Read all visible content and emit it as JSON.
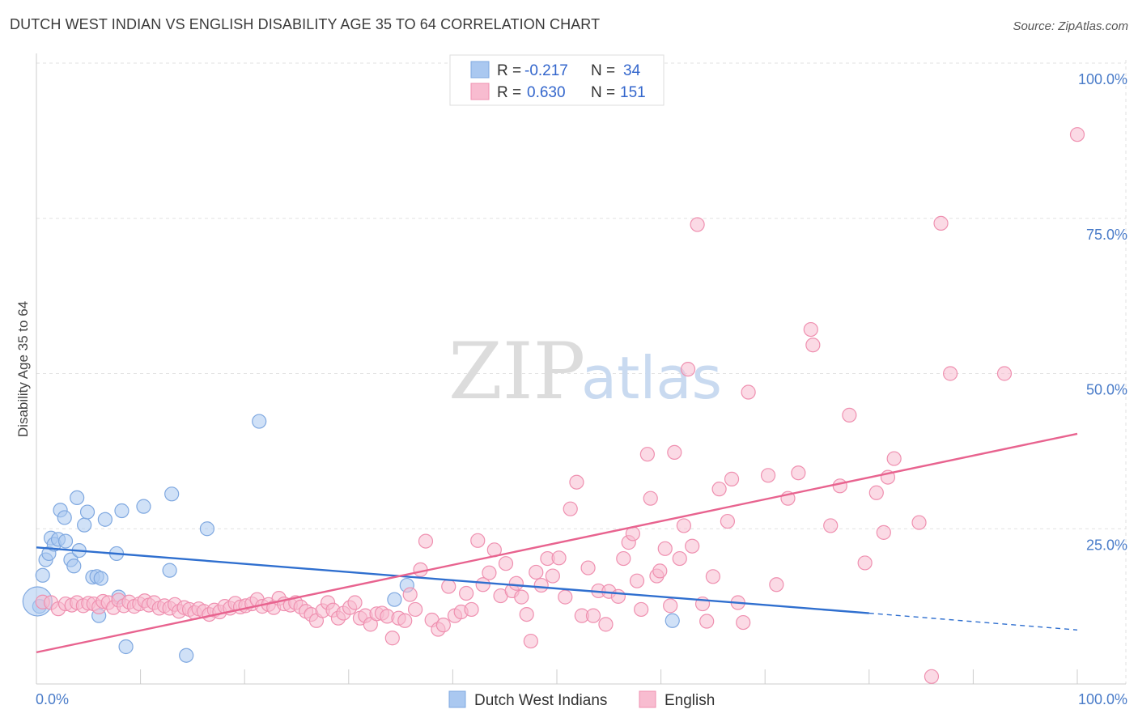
{
  "header": {
    "title": "DUTCH WEST INDIAN VS ENGLISH DISABILITY AGE 35 TO 64 CORRELATION CHART",
    "source": "Source: ZipAtlas.com"
  },
  "watermark": {
    "zip": "ZIP",
    "atlas": "atlas"
  },
  "legend": {
    "rows": [
      {
        "r_label": "R =",
        "r_value": "-0.217",
        "n_label": "N =",
        "n_value": "34",
        "color": "#aac8f0",
        "border": "#7fa8e0"
      },
      {
        "r_label": "R =",
        "r_value": "0.630",
        "n_label": "N =",
        "n_value": "151",
        "color": "#f8bcd0",
        "border": "#ef90b0"
      }
    ]
  },
  "bottom_legend": [
    {
      "label": "Dutch West Indians",
      "color": "#aac8f0",
      "border": "#7fa8e0"
    },
    {
      "label": "English",
      "color": "#f8bcd0",
      "border": "#ef90b0"
    }
  ],
  "chart_data": {
    "type": "scatter",
    "title": "DUTCH WEST INDIAN VS ENGLISH DISABILITY AGE 35 TO 64 CORRELATION CHART",
    "xlabel": "",
    "ylabel": "Disability Age 35 to 64",
    "xlim": [
      0,
      100
    ],
    "ylim": [
      0,
      100
    ],
    "x_tick_labels": [
      "0.0%",
      "100.0%"
    ],
    "y_ticks": [
      {
        "value": 25,
        "label": "25.0%"
      },
      {
        "value": 50,
        "label": "50.0%"
      },
      {
        "value": 75,
        "label": "75.0%"
      },
      {
        "value": 100,
        "label": "100.0%"
      }
    ],
    "grid": true,
    "legend_position": "top-center",
    "series": [
      {
        "name": "Dutch West Indians",
        "color": "#aac8f0",
        "stroke": "#7fa8e0",
        "trend_color": "#2f6fcf",
        "trend": {
          "x0": 0,
          "y0": 22.0,
          "x1": 80,
          "y1": 11.4,
          "x_dash_end": 100,
          "y_dash_end": 8.7
        },
        "points": [
          [
            0.3,
            12.5
          ],
          [
            0.6,
            17.5
          ],
          [
            0.9,
            20.0
          ],
          [
            1.2,
            21.0
          ],
          [
            1.4,
            23.5
          ],
          [
            1.7,
            22.5
          ],
          [
            2.1,
            23.3
          ],
          [
            2.3,
            28.0
          ],
          [
            2.7,
            26.8
          ],
          [
            2.8,
            23.0
          ],
          [
            3.3,
            20.0
          ],
          [
            3.6,
            19.0
          ],
          [
            3.9,
            30.0
          ],
          [
            4.1,
            21.5
          ],
          [
            4.6,
            25.6
          ],
          [
            4.9,
            27.7
          ],
          [
            5.4,
            17.2
          ],
          [
            5.8,
            17.3
          ],
          [
            6.2,
            17.0
          ],
          [
            6.0,
            11.0
          ],
          [
            6.6,
            26.5
          ],
          [
            7.7,
            21.0
          ],
          [
            7.9,
            14.0
          ],
          [
            8.2,
            27.9
          ],
          [
            8.6,
            6.0
          ],
          [
            10.3,
            28.6
          ],
          [
            12.8,
            18.3
          ],
          [
            13.0,
            30.6
          ],
          [
            14.4,
            4.6
          ],
          [
            16.4,
            25.0
          ],
          [
            21.4,
            42.3
          ],
          [
            34.4,
            13.6
          ],
          [
            35.6,
            15.9
          ],
          [
            61.1,
            10.2
          ]
        ],
        "large_points": [
          [
            0.1,
            13.3
          ]
        ]
      },
      {
        "name": "English",
        "color": "#f8bcd0",
        "stroke": "#ef90b0",
        "trend_color": "#e8638f",
        "trend": {
          "x0": 0,
          "y0": 5.1,
          "x1": 100,
          "y1": 40.3
        },
        "points": [
          [
            0.6,
            13.2
          ],
          [
            1.4,
            13.1
          ],
          [
            2.1,
            12.1
          ],
          [
            2.8,
            12.9
          ],
          [
            3.4,
            12.7
          ],
          [
            3.9,
            13.1
          ],
          [
            4.5,
            12.6
          ],
          [
            5.0,
            13.0
          ],
          [
            5.5,
            12.9
          ],
          [
            6.0,
            12.4
          ],
          [
            6.4,
            13.3
          ],
          [
            6.9,
            13.1
          ],
          [
            7.4,
            12.3
          ],
          [
            7.9,
            13.5
          ],
          [
            8.4,
            12.6
          ],
          [
            8.9,
            13.2
          ],
          [
            9.4,
            12.5
          ],
          [
            9.9,
            12.9
          ],
          [
            10.4,
            13.4
          ],
          [
            10.8,
            12.7
          ],
          [
            11.3,
            13.1
          ],
          [
            11.8,
            12.2
          ],
          [
            12.3,
            12.6
          ],
          [
            12.8,
            12.2
          ],
          [
            13.3,
            12.8
          ],
          [
            13.7,
            11.7
          ],
          [
            14.2,
            12.3
          ],
          [
            14.7,
            12.0
          ],
          [
            15.2,
            11.5
          ],
          [
            15.6,
            12.1
          ],
          [
            16.1,
            11.7
          ],
          [
            16.6,
            11.2
          ],
          [
            17.1,
            11.9
          ],
          [
            17.6,
            11.6
          ],
          [
            18.1,
            12.5
          ],
          [
            18.6,
            12.2
          ],
          [
            19.1,
            13.0
          ],
          [
            19.6,
            12.4
          ],
          [
            20.1,
            12.6
          ],
          [
            20.7,
            12.9
          ],
          [
            21.2,
            13.6
          ],
          [
            21.7,
            12.5
          ],
          [
            22.3,
            12.8
          ],
          [
            22.8,
            12.3
          ],
          [
            23.3,
            13.8
          ],
          [
            23.8,
            12.9
          ],
          [
            24.4,
            12.7
          ],
          [
            24.9,
            13.1
          ],
          [
            25.4,
            12.4
          ],
          [
            25.9,
            11.7
          ],
          [
            26.4,
            11.2
          ],
          [
            26.9,
            10.2
          ],
          [
            27.5,
            11.8
          ],
          [
            28.0,
            13.1
          ],
          [
            28.5,
            11.9
          ],
          [
            29.0,
            10.6
          ],
          [
            29.5,
            11.4
          ],
          [
            30.1,
            12.3
          ],
          [
            30.6,
            13.1
          ],
          [
            31.1,
            10.6
          ],
          [
            31.6,
            11.0
          ],
          [
            32.1,
            9.6
          ],
          [
            32.7,
            11.3
          ],
          [
            33.2,
            11.4
          ],
          [
            33.7,
            10.9
          ],
          [
            34.2,
            7.4
          ],
          [
            34.8,
            10.6
          ],
          [
            35.4,
            10.2
          ],
          [
            35.9,
            14.4
          ],
          [
            36.4,
            12.0
          ],
          [
            36.9,
            18.4
          ],
          [
            37.4,
            23.0
          ],
          [
            38.0,
            10.3
          ],
          [
            38.6,
            8.8
          ],
          [
            39.1,
            9.5
          ],
          [
            39.6,
            15.7
          ],
          [
            40.2,
            11.0
          ],
          [
            40.8,
            11.6
          ],
          [
            41.3,
            14.6
          ],
          [
            41.8,
            12.0
          ],
          [
            42.4,
            23.1
          ],
          [
            42.9,
            16.0
          ],
          [
            43.5,
            17.9
          ],
          [
            44.0,
            21.6
          ],
          [
            44.6,
            14.2
          ],
          [
            45.1,
            19.4
          ],
          [
            45.7,
            15.0
          ],
          [
            46.1,
            16.2
          ],
          [
            46.6,
            14.0
          ],
          [
            47.1,
            11.2
          ],
          [
            47.5,
            6.9
          ],
          [
            48.0,
            18.0
          ],
          [
            48.5,
            15.9
          ],
          [
            49.1,
            20.2
          ],
          [
            49.6,
            17.4
          ],
          [
            50.2,
            20.3
          ],
          [
            50.8,
            14.0
          ],
          [
            51.3,
            28.2
          ],
          [
            51.9,
            32.5
          ],
          [
            52.4,
            11.0
          ],
          [
            53.0,
            18.7
          ],
          [
            53.5,
            11.0
          ],
          [
            54.0,
            15.0
          ],
          [
            54.7,
            9.6
          ],
          [
            55.0,
            14.9
          ],
          [
            55.9,
            14.1
          ],
          [
            56.4,
            20.2
          ],
          [
            56.9,
            22.8
          ],
          [
            57.3,
            24.2
          ],
          [
            57.7,
            16.6
          ],
          [
            58.1,
            12.0
          ],
          [
            58.7,
            37.0
          ],
          [
            59.0,
            29.9
          ],
          [
            59.6,
            17.4
          ],
          [
            59.9,
            18.2
          ],
          [
            60.4,
            21.8
          ],
          [
            60.9,
            12.6
          ],
          [
            61.3,
            37.3
          ],
          [
            61.8,
            20.2
          ],
          [
            62.2,
            25.5
          ],
          [
            62.6,
            50.7
          ],
          [
            63.0,
            22.2
          ],
          [
            63.5,
            74.0
          ],
          [
            64.0,
            12.9
          ],
          [
            64.4,
            10.1
          ],
          [
            65.0,
            17.3
          ],
          [
            65.6,
            31.4
          ],
          [
            66.4,
            26.2
          ],
          [
            66.8,
            33.0
          ],
          [
            67.4,
            13.1
          ],
          [
            67.9,
            9.9
          ],
          [
            68.4,
            47.0
          ],
          [
            70.3,
            33.6
          ],
          [
            71.1,
            16.0
          ],
          [
            72.2,
            29.9
          ],
          [
            73.2,
            34.0
          ],
          [
            74.4,
            57.1
          ],
          [
            74.6,
            54.6
          ],
          [
            76.3,
            25.5
          ],
          [
            77.2,
            31.9
          ],
          [
            78.1,
            43.3
          ],
          [
            79.6,
            19.5
          ],
          [
            80.7,
            30.8
          ],
          [
            81.4,
            24.4
          ],
          [
            81.8,
            33.3
          ],
          [
            82.4,
            36.3
          ],
          [
            84.8,
            26.0
          ],
          [
            86.0,
            1.2
          ],
          [
            86.9,
            74.2
          ],
          [
            87.8,
            50.0
          ],
          [
            93.0,
            50.0
          ],
          [
            100.0,
            88.5
          ]
        ]
      }
    ]
  }
}
